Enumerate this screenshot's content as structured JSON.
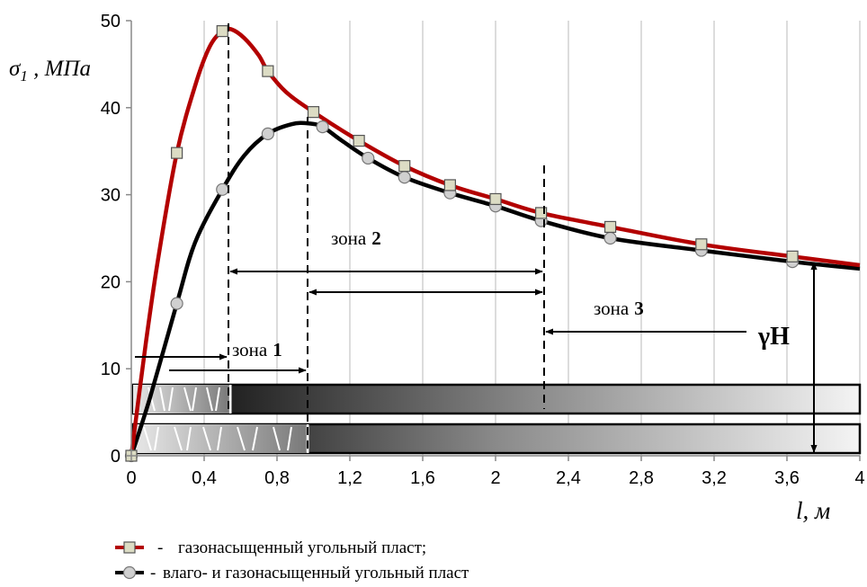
{
  "chart_data": {
    "type": "line",
    "ylabel_symbol": "σ",
    "ylabel_sub": "1",
    "ylabel_unit": " , МПа",
    "xlabel_var": "l",
    "xlabel_unit": ", м",
    "xlim": [
      0,
      4
    ],
    "ylim": [
      0,
      50
    ],
    "x_ticks": [
      0,
      0.4,
      0.8,
      1.2,
      1.6,
      2,
      2.4,
      2.8,
      3.2,
      3.6,
      4
    ],
    "x_tick_labels": [
      "0",
      "0,4",
      "0,8",
      "1,2",
      "1,6",
      "2",
      "2,4",
      "2,8",
      "3,2",
      "3,6",
      "4"
    ],
    "y_ticks": [
      0,
      10,
      20,
      30,
      40,
      50
    ],
    "y_tick_labels": [
      "0",
      "10",
      "20",
      "30",
      "40",
      "50"
    ],
    "grid": "vertical",
    "series": [
      {
        "name": "газонасыщенный угольный пласт;",
        "color": "#b30000",
        "marker": "square",
        "points": [
          [
            0,
            0
          ],
          [
            0.25,
            34.8
          ],
          [
            0.5,
            48.8
          ],
          [
            0.75,
            44.2
          ],
          [
            1.0,
            39.5
          ],
          [
            1.25,
            36.2
          ],
          [
            1.5,
            33.3
          ],
          [
            1.75,
            31.1
          ],
          [
            2.0,
            29.5
          ],
          [
            2.25,
            27.9
          ],
          [
            2.63,
            26.3
          ],
          [
            3.13,
            24.3
          ],
          [
            3.63,
            22.9
          ]
        ],
        "curve": [
          [
            0,
            0
          ],
          [
            0.08,
            13
          ],
          [
            0.15,
            23
          ],
          [
            0.25,
            34.8
          ],
          [
            0.35,
            42.5
          ],
          [
            0.43,
            47
          ],
          [
            0.5,
            48.8
          ],
          [
            0.55,
            49
          ],
          [
            0.62,
            48
          ],
          [
            0.7,
            46
          ],
          [
            0.75,
            44.2
          ],
          [
            0.85,
            41.8
          ],
          [
            1.0,
            39.5
          ],
          [
            1.25,
            36.2
          ],
          [
            1.5,
            33.3
          ],
          [
            1.75,
            31.1
          ],
          [
            2.0,
            29.5
          ],
          [
            2.25,
            27.9
          ],
          [
            2.63,
            26.3
          ],
          [
            3.13,
            24.3
          ],
          [
            3.63,
            22.9
          ],
          [
            4.0,
            21.9
          ]
        ]
      },
      {
        "name": "влаго- и газонасыщенный угольный пласт",
        "color": "#000000",
        "marker": "circle",
        "points": [
          [
            0,
            0
          ],
          [
            0.25,
            17.5
          ],
          [
            0.5,
            30.6
          ],
          [
            0.75,
            37.0
          ],
          [
            1.05,
            37.8
          ],
          [
            1.3,
            34.2
          ],
          [
            1.5,
            32.0
          ],
          [
            1.75,
            30.2
          ],
          [
            2.0,
            28.7
          ],
          [
            2.25,
            27.0
          ],
          [
            2.63,
            25.0
          ],
          [
            3.13,
            23.6
          ],
          [
            3.63,
            22.3
          ]
        ],
        "curve": [
          [
            0,
            0
          ],
          [
            0.1,
            6.5
          ],
          [
            0.25,
            17.5
          ],
          [
            0.35,
            24.5
          ],
          [
            0.5,
            30.6
          ],
          [
            0.62,
            34.5
          ],
          [
            0.75,
            37.0
          ],
          [
            0.88,
            38.1
          ],
          [
            0.97,
            38.2
          ],
          [
            1.05,
            37.8
          ],
          [
            1.15,
            36.3
          ],
          [
            1.3,
            34.2
          ],
          [
            1.5,
            32.0
          ],
          [
            1.75,
            30.2
          ],
          [
            2.0,
            28.7
          ],
          [
            2.25,
            27.0
          ],
          [
            2.63,
            25.0
          ],
          [
            3.13,
            23.6
          ],
          [
            3.63,
            22.3
          ],
          [
            4.0,
            21.5
          ]
        ]
      }
    ],
    "annotations": {
      "zone1_word": "зона",
      "zone1_num": "1",
      "zone2_word": "зона",
      "zone2_num": "2",
      "zone3_word": "зона",
      "zone3_num": "3",
      "gamma_h": "γH"
    }
  },
  "legend": {
    "dash": "-",
    "items": [
      "газонасыщенный угольный пласт;",
      "влаго- и газонасыщенный угольный пласт"
    ]
  }
}
